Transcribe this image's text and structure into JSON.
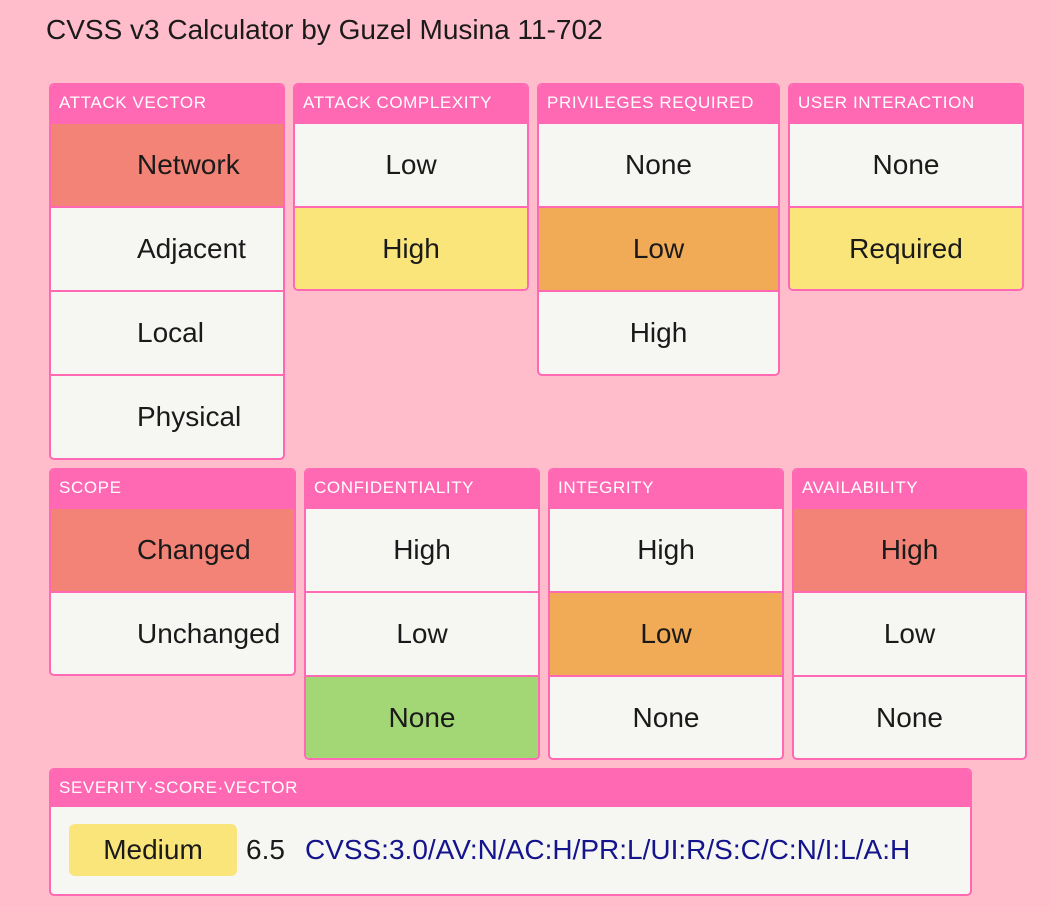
{
  "app": {
    "title": "CVSS v3 Calculator by Guzel Musina 11-702"
  },
  "colors": {
    "accent": "#ff69b4",
    "background": "#ffbccb",
    "red": "#f28376",
    "yellow": "#fae57a",
    "orange": "#f1ab57",
    "green": "#a3d675",
    "vector_text": "#14148c"
  },
  "metrics": {
    "attack_vector": {
      "label": "ATTACK VECTOR",
      "options": [
        "Network",
        "Adjacent",
        "Local",
        "Physical"
      ],
      "selected": "Network"
    },
    "attack_complexity": {
      "label": "ATTACK COMPLEXITY",
      "options": [
        "Low",
        "High"
      ],
      "selected": "High"
    },
    "privileges_required": {
      "label": "PRIVILEGES REQUIRED",
      "options": [
        "None",
        "Low",
        "High"
      ],
      "selected": "Low"
    },
    "user_interaction": {
      "label": "USER INTERACTION",
      "options": [
        "None",
        "Required"
      ],
      "selected": "Required"
    },
    "scope": {
      "label": "SCOPE",
      "options": [
        "Changed",
        "Unchanged"
      ],
      "selected": "Changed"
    },
    "confidentiality": {
      "label": "CONFIDENTIALITY",
      "options": [
        "High",
        "Low",
        "None"
      ],
      "selected": "None"
    },
    "integrity": {
      "label": "INTEGRITY",
      "options": [
        "High",
        "Low",
        "None"
      ],
      "selected": "Low"
    },
    "availability": {
      "label": "AVAILABILITY",
      "options": [
        "High",
        "Low",
        "None"
      ],
      "selected": "High"
    }
  },
  "severity": {
    "label": "SEVERITY·SCORE·VECTOR",
    "rating": "Medium",
    "score": "6.5",
    "vector": "CVSS:3.0/AV:N/AC:H/PR:L/UI:R/S:C/C:N/I:L/A:H"
  }
}
